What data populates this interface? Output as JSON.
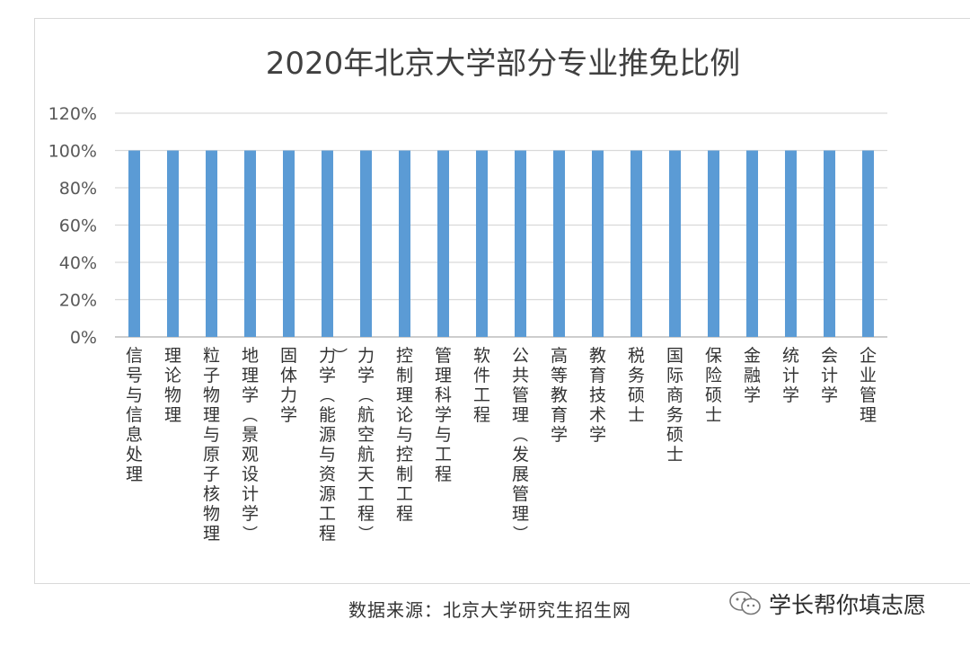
{
  "chart_data": {
    "type": "bar",
    "title": "2020年北京大学部分专业推免比例",
    "categories": [
      "信号与信息处理",
      "理论物理",
      "粒子物理与原子核物理",
      "地理学(景观设计学)",
      "固体力学",
      "力学(能源与资源工程)",
      "力学(航空航天工程)",
      "控制理论与控制工程",
      "管理科学与工程",
      "软件工程",
      "公共管理(发展管理)",
      "高等教育学",
      "教育技术学",
      "税务硕士",
      "国际商务硕士",
      "保险硕士",
      "金融学",
      "统计学",
      "会计学",
      "企业管理"
    ],
    "values": [
      100,
      100,
      100,
      100,
      100,
      100,
      100,
      100,
      100,
      100,
      100,
      100,
      100,
      100,
      100,
      100,
      100,
      100,
      100,
      100
    ],
    "ylim": [
      0,
      120
    ],
    "yticks": [
      "0%",
      "20%",
      "40%",
      "60%",
      "80%",
      "100%",
      "120%"
    ],
    "grid": true,
    "bar_color": "#5b9bd5",
    "grid_color": "#d9d9d9"
  },
  "source": "数据来源：北京大学研究生招生网",
  "watermark": "学长帮你填志愿",
  "watermark_icon": "wechat-icon"
}
